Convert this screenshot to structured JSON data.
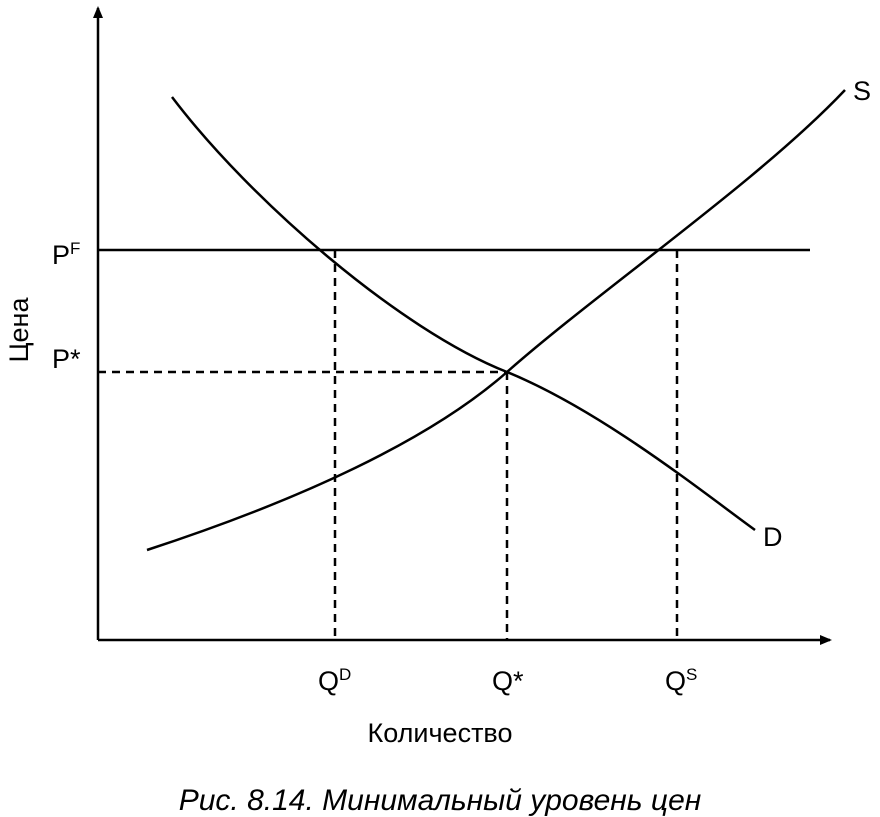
{
  "labels": {
    "price_floor": {
      "main": "P",
      "sup": "F"
    },
    "price_eq": "P*",
    "q_demand": {
      "main": "Q",
      "sup": "D"
    },
    "q_eq": "Q*",
    "q_supply": {
      "main": "Q",
      "sup": "S"
    },
    "supply": "S",
    "demand": "D",
    "y_axis": "Цена",
    "x_axis": "Количество"
  },
  "caption": "Рис. 8.14. Минимальный уровень цен"
}
